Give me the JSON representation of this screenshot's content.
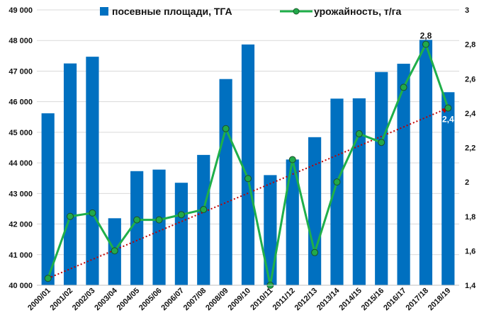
{
  "chart_data": {
    "type": "bar",
    "categories": [
      "2000/01",
      "2001/02",
      "2002/03",
      "2003/04",
      "2004/05",
      "2005/06",
      "2006/07",
      "2007/08",
      "2008/09",
      "2009/10",
      "2010/11",
      "2011/12",
      "2012/13",
      "2013/14",
      "2014/15",
      "2015/16",
      "2016/17",
      "2017/18",
      "2018/19"
    ],
    "series": [
      {
        "name": "посевные площади, ТГА",
        "type": "bar",
        "axis": "left",
        "values": [
          45620,
          47250,
          47470,
          42190,
          43730,
          43780,
          43350,
          44260,
          46740,
          47870,
          43600,
          44110,
          44840,
          46100,
          46110,
          46970,
          47240,
          48020,
          46310
        ],
        "color": "#0070C0"
      },
      {
        "name": "урожайность, т/га",
        "type": "line",
        "axis": "right",
        "values": [
          1.44,
          1.8,
          1.82,
          1.6,
          1.78,
          1.78,
          1.81,
          1.84,
          2.31,
          2.02,
          1.4,
          2.13,
          1.59,
          2.0,
          2.28,
          2.23,
          2.55,
          2.8,
          2.43
        ],
        "color": "#1FAF4A"
      }
    ],
    "trendline": {
      "series": "урожайность, т/га",
      "start": 1.44,
      "end": 2.43,
      "color": "#C00000"
    },
    "data_labels": [
      {
        "index": 17,
        "text": "2,8"
      },
      {
        "index": 18,
        "text": "2,4"
      }
    ],
    "y_left": {
      "min": 40000,
      "max": 49000,
      "step": 1000,
      "ticks": [
        "40 000",
        "41 000",
        "42 000",
        "43 000",
        "44 000",
        "45 000",
        "46 000",
        "47 000",
        "48 000",
        "49 000"
      ]
    },
    "y_right": {
      "min": 1.4,
      "max": 3.0,
      "tick_values": [
        1.4,
        1.6,
        1.8,
        2.0,
        2.2,
        2.4,
        2.6,
        2.8,
        3.0
      ],
      "ticks": [
        "1,4",
        "1,6",
        "1,8",
        "2",
        "2,2",
        "2,4",
        "2,6",
        "2,8",
        "3"
      ]
    },
    "grid": true,
    "legend_position": "top"
  }
}
